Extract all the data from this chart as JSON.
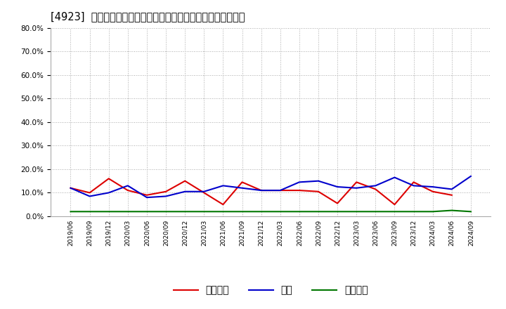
{
  "title": "[4923]  売上債権、在庫、買入債務の総資産に対する比率の推移",
  "dates": [
    "2019/06",
    "2019/09",
    "2019/12",
    "2020/03",
    "2020/06",
    "2020/09",
    "2020/12",
    "2021/03",
    "2021/06",
    "2021/09",
    "2021/12",
    "2022/03",
    "2022/06",
    "2022/09",
    "2022/12",
    "2023/03",
    "2023/06",
    "2023/09",
    "2023/12",
    "2024/03",
    "2024/06",
    "2024/09"
  ],
  "uriage": [
    12.0,
    10.0,
    16.0,
    11.0,
    9.0,
    10.5,
    15.0,
    10.0,
    5.0,
    14.5,
    11.0,
    11.0,
    11.0,
    10.5,
    5.5,
    14.5,
    11.5,
    5.0,
    14.5,
    10.5,
    9.0,
    null
  ],
  "zaiko": [
    12.0,
    8.5,
    10.0,
    13.0,
    8.0,
    8.5,
    10.5,
    10.5,
    13.0,
    12.0,
    11.0,
    11.0,
    14.5,
    15.0,
    12.5,
    12.0,
    13.0,
    16.5,
    13.0,
    12.5,
    11.5,
    17.0
  ],
  "kaiire": [
    2.0,
    2.0,
    2.0,
    2.0,
    2.0,
    2.0,
    2.0,
    2.0,
    2.0,
    2.0,
    2.0,
    2.0,
    2.0,
    2.0,
    2.0,
    2.0,
    2.0,
    2.0,
    2.0,
    2.0,
    2.5,
    2.0
  ],
  "uriage_color": "#dd0000",
  "zaiko_color": "#0000cc",
  "kaiire_color": "#007700",
  "uriage_label": "売上債権",
  "zaiko_label": "在庫",
  "kaiire_label": "買入債務",
  "ylim": [
    0,
    80
  ],
  "yticks": [
    0,
    10,
    20,
    30,
    40,
    50,
    60,
    70,
    80
  ],
  "bg_color": "#ffffff",
  "grid_color": "#aaaaaa",
  "title_fontsize": 10.5
}
